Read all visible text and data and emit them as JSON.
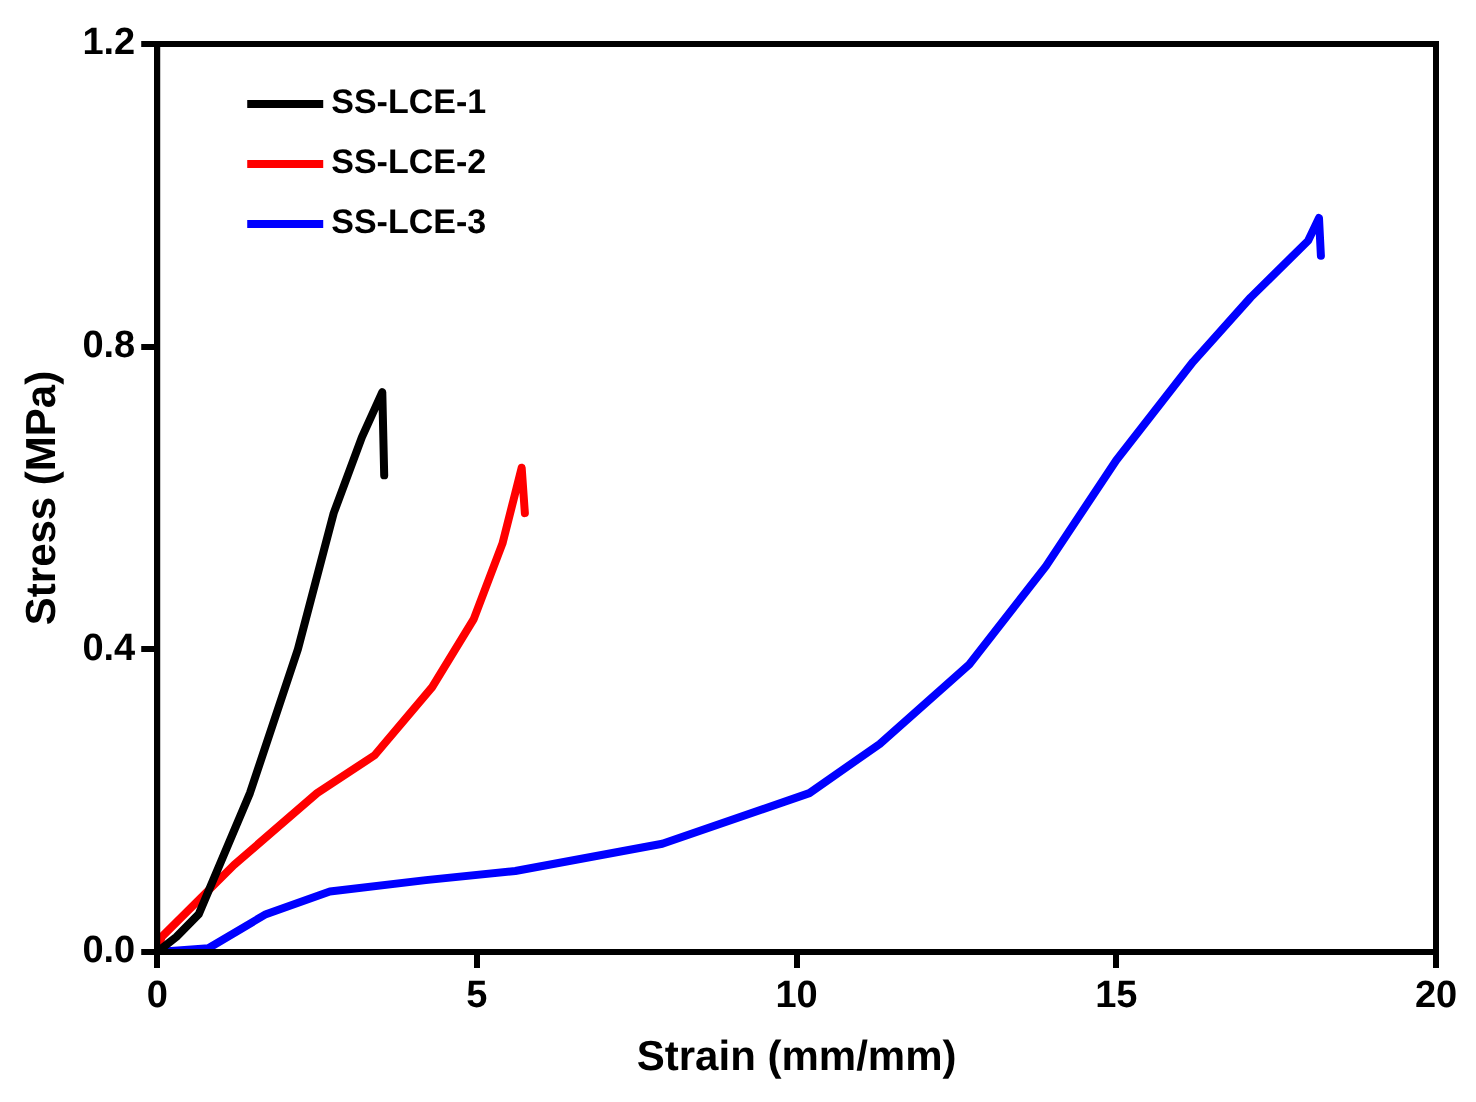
{
  "chart_data": {
    "type": "line",
    "xlabel": "Strain (mm/mm)",
    "ylabel": "Stress (MPa)",
    "xlim": [
      0,
      20
    ],
    "xticks": [
      0,
      5,
      10,
      15,
      20
    ],
    "ylim": [
      0,
      1.2
    ],
    "yticks": [
      {
        "value": 0,
        "label": "0.0"
      },
      {
        "value": 0.4,
        "label": "0.4"
      },
      {
        "value": 0.8,
        "label": "0.8"
      },
      {
        "value": 1.2,
        "label": "1.2"
      }
    ],
    "grid": false,
    "legend": "top left",
    "marker": "none",
    "line_style": "solid",
    "series": [
      {
        "name": "SS-LCE-1",
        "color": "#000000",
        "x": [
          0,
          0.3,
          0.65,
          1.45,
          2.2,
          2.76,
          3.2,
          3.52,
          3.55
        ],
        "values": [
          0,
          0.02,
          0.05,
          0.21,
          0.4,
          0.58,
          0.68,
          0.74,
          0.63
        ]
      },
      {
        "name": "SS-LCE-2",
        "color": "#ff0000",
        "x": [
          0,
          0.07,
          1.2,
          2.5,
          3.4,
          4.3,
          4.95,
          5.4,
          5.7,
          5.75
        ],
        "values": [
          0,
          0.02,
          0.115,
          0.21,
          0.26,
          0.35,
          0.44,
          0.54,
          0.64,
          0.58
        ]
      },
      {
        "name": "SS-LCE-3",
        "color": "#0000ff",
        "x": [
          0,
          0.8,
          1.7,
          2.7,
          4.2,
          5.6,
          7.9,
          10.2,
          11.3,
          12.7,
          13.9,
          15,
          16.2,
          17.1,
          18,
          18.17,
          18.2
        ],
        "values": [
          0,
          0.005,
          0.05,
          0.08,
          0.095,
          0.107,
          0.143,
          0.21,
          0.275,
          0.38,
          0.51,
          0.65,
          0.78,
          0.865,
          0.94,
          0.97,
          0.92
        ]
      }
    ]
  }
}
